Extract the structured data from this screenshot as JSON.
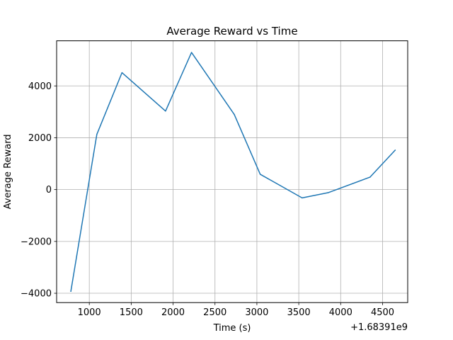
{
  "chart_data": {
    "type": "line",
    "title": "Average Reward vs Time",
    "xlabel": "Time (s)",
    "ylabel": "Average Reward",
    "x_offset_label": "+1.68391e9",
    "xlim": [
      610,
      4800
    ],
    "ylim": [
      -4360,
      5740
    ],
    "xticks": [
      1000,
      1500,
      2000,
      2500,
      3000,
      3500,
      4000,
      4500
    ],
    "yticks": [
      -4000,
      -2000,
      0,
      2000,
      4000
    ],
    "grid": true,
    "series": [
      {
        "color": "#1f77b4",
        "x": [
          780,
          1090,
          1390,
          1910,
          2220,
          2730,
          3040,
          3540,
          3850,
          4350,
          4650
        ],
        "y": [
          -3920,
          2130,
          4510,
          3030,
          5290,
          2900,
          590,
          -320,
          -120,
          480,
          1520
        ]
      }
    ]
  }
}
